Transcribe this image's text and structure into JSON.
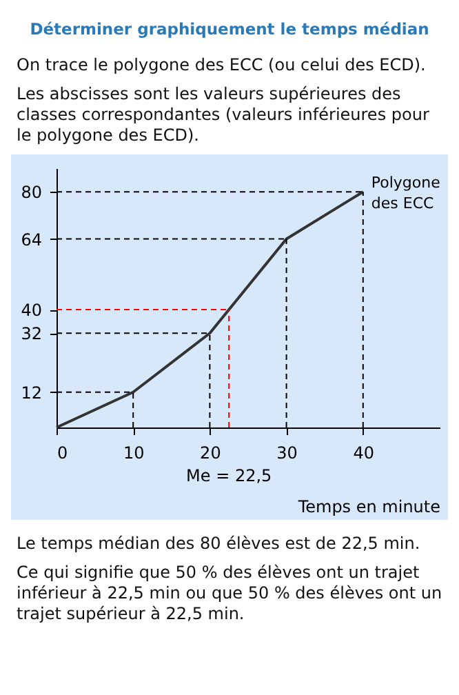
{
  "chart_data": {
    "type": "line",
    "title": "Déterminer graphiquement le temps médian",
    "xlabel": "Temps en minute",
    "annotations": [
      "On trace le polygone des ECC (ou celui des ECD).",
      "Les abscisses sont les valeurs supérieures des classes correspondantes (valeurs inférieures pour le polygone des ECD).",
      {
        "text": "Me = 22,5",
        "x": 22.5,
        "y": 0
      },
      "Le temps médian des 80 élèves est de 22,5 min.",
      "Ce qui signifie que 50 % des élèves ont un trajet inférieur à 22,5 min ou que 50 % des élèves ont un trajet supérieur à 22,5 min."
    ],
    "x": [
      0,
      10,
      20,
      30,
      40
    ],
    "series": [
      {
        "name": "Polygone des ECC",
        "color": "#333333",
        "values": [
          0,
          12,
          32,
          64,
          80
        ]
      }
    ],
    "xlim": [
      0,
      50
    ],
    "ylim": [
      0,
      88
    ],
    "xticks": [
      0,
      10,
      20,
      30,
      40
    ],
    "yticks": [
      12,
      32,
      40,
      64,
      80
    ],
    "ref_lines": [
      {
        "axis": "y",
        "value": 12,
        "color": "#000000",
        "line_style": "dashed"
      },
      {
        "axis": "y",
        "value": 32,
        "color": "#000000",
        "line_style": "dashed"
      },
      {
        "axis": "y",
        "value": 64,
        "color": "#000000",
        "line_style": "dashed"
      },
      {
        "axis": "y",
        "value": 80,
        "color": "#000000",
        "line_style": "dashed"
      },
      {
        "axis": "y",
        "value": 40,
        "color": "#ff0000",
        "line_style": "dashed"
      },
      {
        "axis": "x",
        "value": 10,
        "color": "#000000",
        "line_style": "dashed"
      },
      {
        "axis": "x",
        "value": 20,
        "color": "#000000",
        "line_style": "dashed"
      },
      {
        "axis": "x",
        "value": 30,
        "color": "#000000",
        "line_style": "dashed"
      },
      {
        "axis": "x",
        "value": 40,
        "color": "#000000",
        "line_style": "dashed"
      },
      {
        "axis": "x",
        "value": 22.5,
        "color": "#ff0000",
        "line_style": "dashed"
      }
    ],
    "grid": false,
    "marker": "none",
    "line_style": "solid",
    "legend": false
  }
}
